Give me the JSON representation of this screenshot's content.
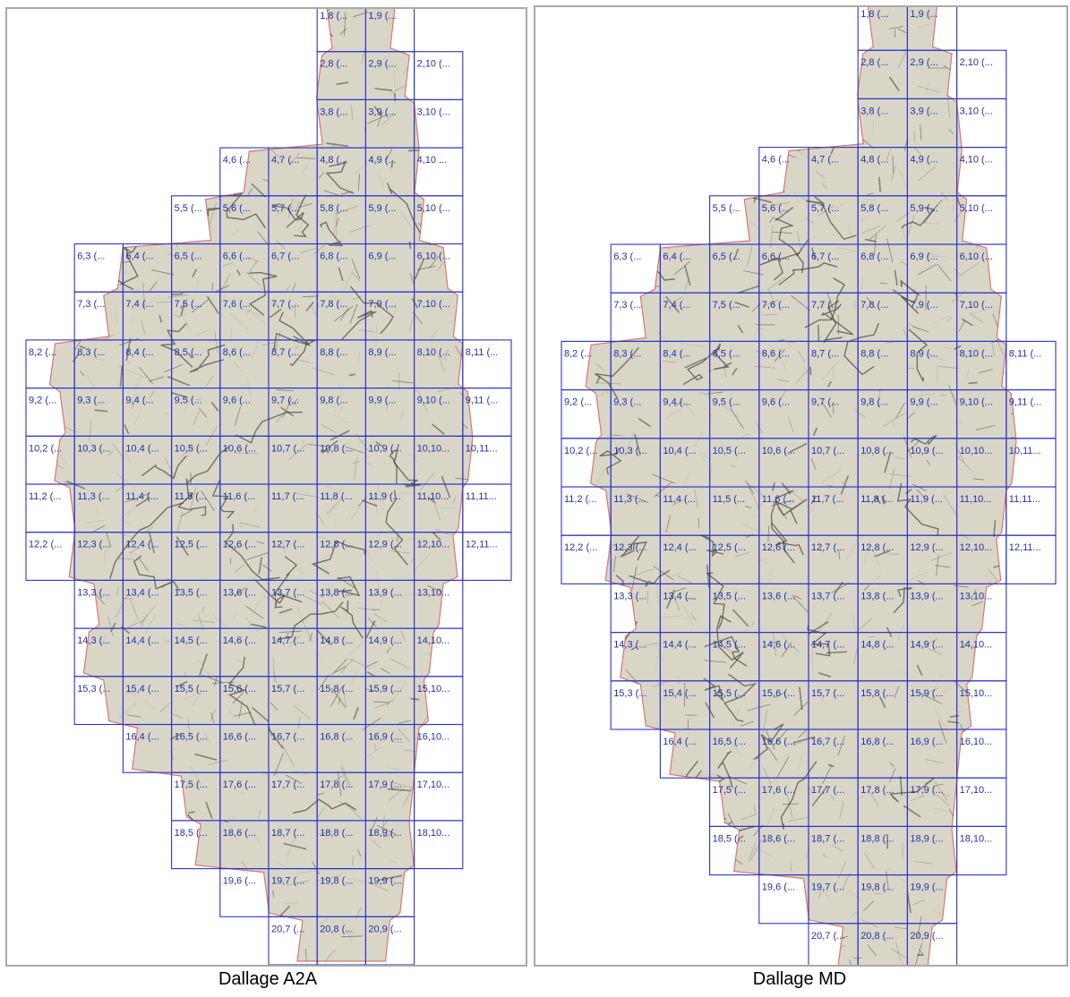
{
  "colors": {
    "grid": "#2a36c9",
    "label": "#2430a8",
    "map_base": "#d9d6c8",
    "map_dark": "#3d3a33",
    "map_edge": "#d8776f",
    "frame": "#a9a9a9"
  },
  "panels": [
    {
      "caption": "Dallage A2A",
      "rows": [
        {
          "row": 1,
          "cols": [
            8,
            9
          ],
          "labels": [
            "1,8 (...",
            "1,9 (..."
          ]
        },
        {
          "row": 2,
          "cols": [
            8,
            9,
            10
          ],
          "labels": [
            "2,8 (...",
            "2,9 (...",
            "2,10 (..."
          ]
        },
        {
          "row": 3,
          "cols": [
            8,
            9,
            10
          ],
          "labels": [
            "3,8 (...",
            "3,9 (...",
            "3,10 (..."
          ]
        },
        {
          "row": 4,
          "cols": [
            6,
            7,
            8,
            9,
            10
          ],
          "labels": [
            "4,6 (...",
            "4,7 (...",
            "4,8 (...",
            "4,9 (...",
            "4,10 ..."
          ]
        },
        {
          "row": 5,
          "cols": [
            5,
            6,
            7,
            8,
            9,
            10
          ],
          "labels": [
            "5,5 (...",
            "5,6 (...",
            "5,7 (...",
            "5,8 (...",
            "5,9 (...",
            "5,10 (..."
          ]
        },
        {
          "row": 6,
          "cols": [
            3,
            4,
            5,
            6,
            7,
            8,
            9,
            10
          ],
          "labels": [
            "6,3 (...",
            "6,4 (...",
            "6,5 (...",
            "6,6 (...",
            "6,7 (...",
            "6,8 (...",
            "6,9 (...",
            "6,10 (..."
          ]
        },
        {
          "row": 7,
          "cols": [
            3,
            4,
            5,
            6,
            7,
            8,
            9,
            10
          ],
          "labels": [
            "7,3 (...",
            "7,4 (...",
            "7,5 (...",
            "7,6 (...",
            "7,7 (...",
            "7,8 (...",
            "7,9 (...",
            "7,10 (..."
          ]
        },
        {
          "row": 8,
          "cols": [
            2,
            3,
            4,
            5,
            6,
            7,
            8,
            9,
            10,
            11
          ],
          "labels": [
            "8,2 (...",
            "8,3 (...",
            "8,4 (...",
            "8,5 (...",
            "8,6 (...",
            "8,7 (...",
            "8,8 (...",
            "8,9 (...",
            "8,10 (...",
            "8,11 (..."
          ]
        },
        {
          "row": 9,
          "cols": [
            2,
            3,
            4,
            5,
            6,
            7,
            8,
            9,
            10,
            11
          ],
          "labels": [
            "9,2 (...",
            "9,3 (...",
            "9,4 (...",
            "9,5 (...",
            "9,6 (...",
            "9,7 (...",
            "9,8 (...",
            "9,9 (...",
            "9,10 (...",
            "9,11 (..."
          ]
        },
        {
          "row": 10,
          "cols": [
            2,
            3,
            4,
            5,
            6,
            7,
            8,
            9,
            10,
            11
          ],
          "labels": [
            "10,2 (...",
            "10,3 (...",
            "10,4 (...",
            "10,5 (...",
            "10,6 (...",
            "10,7 (...",
            "10,8 (...",
            "10,9 (...",
            "10,10...",
            "10,11..."
          ]
        },
        {
          "row": 11,
          "cols": [
            2,
            3,
            4,
            5,
            6,
            7,
            8,
            9,
            10,
            11
          ],
          "labels": [
            "11,2 (...",
            "11,3 (...",
            "11,4 (...",
            "11,5 (...",
            "11,6 (...",
            "11,7 (...",
            "11,8 (...",
            "11,9 (...",
            "11,10...",
            "11,11..."
          ]
        },
        {
          "row": 12,
          "cols": [
            2,
            3,
            4,
            5,
            6,
            7,
            8,
            9,
            10,
            11
          ],
          "labels": [
            "12,2 (...",
            "12,3 (...",
            "12,4 (...",
            "12,5 (...",
            "12,6 (...",
            "12,7 (...",
            "12,8 (...",
            "12,9 (...",
            "12,10...",
            "12,11..."
          ]
        },
        {
          "row": 13,
          "cols": [
            3,
            4,
            5,
            6,
            7,
            8,
            9,
            10
          ],
          "labels": [
            "13,3 (...",
            "13,4 (...",
            "13,5 (...",
            "13,6 (...",
            "13,7 (...",
            "13,8 (...",
            "13,9 (...",
            "13,10..."
          ]
        },
        {
          "row": 14,
          "cols": [
            3,
            4,
            5,
            6,
            7,
            8,
            9,
            10
          ],
          "labels": [
            "14,3 (...",
            "14,4 (...",
            "14,5 (...",
            "14,6 (...",
            "14,7 (...",
            "14,8 (...",
            "14,9 (...",
            "14,10..."
          ]
        },
        {
          "row": 15,
          "cols": [
            3,
            4,
            5,
            6,
            7,
            8,
            9,
            10
          ],
          "labels": [
            "15,3 (...",
            "15,4 (...",
            "15,5 (...",
            "15,6 (...",
            "15,7 (...",
            "15,8 (...",
            "15,9 (...",
            "15,10..."
          ]
        },
        {
          "row": 16,
          "cols": [
            4,
            5,
            6,
            7,
            8,
            9,
            10
          ],
          "labels": [
            "16,4 (...",
            "16,5 (...",
            "16,6 (...",
            "16,7 (...",
            "16,8 (...",
            "16,9 (...",
            "16,10..."
          ]
        },
        {
          "row": 17,
          "cols": [
            5,
            6,
            7,
            8,
            9,
            10
          ],
          "labels": [
            "17,5 (...",
            "17,6 (...",
            "17,7 (...",
            "17,8 (...",
            "17,9 (...",
            "17,10..."
          ]
        },
        {
          "row": 18,
          "cols": [
            5,
            6,
            7,
            8,
            9,
            10
          ],
          "labels": [
            "18,5 (...",
            "18,6 (...",
            "18,7 (...",
            "18,8 (...",
            "18,9 (...",
            "18,10..."
          ]
        },
        {
          "row": 19,
          "cols": [
            6,
            7,
            8,
            9
          ],
          "labels": [
            "19,6 (...",
            "19,7 (...",
            "19,8 (...",
            "19,9 (..."
          ]
        },
        {
          "row": 20,
          "cols": [
            7,
            8,
            9
          ],
          "labels": [
            "20,7 (...",
            "20,8 (...",
            "20,9 (..."
          ]
        }
      ]
    },
    {
      "caption": "Dallage MD",
      "rows": [
        {
          "row": 1,
          "cols": [
            8,
            9
          ],
          "labels": [
            "1,8 (...",
            "1,9 (..."
          ]
        },
        {
          "row": 2,
          "cols": [
            8,
            9,
            10
          ],
          "labels": [
            "2,8 (...",
            "2,9 (...",
            "2,10 (..."
          ]
        },
        {
          "row": 3,
          "cols": [
            8,
            9,
            10
          ],
          "labels": [
            "3,8 (...",
            "3,9 (...",
            "3,10 (..."
          ]
        },
        {
          "row": 4,
          "cols": [
            6,
            7,
            8,
            9,
            10
          ],
          "labels": [
            "4,6 (...",
            "4,7 (...",
            "4,8 (...",
            "4,9 (...",
            "4,10 (..."
          ]
        },
        {
          "row": 5,
          "cols": [
            5,
            6,
            7,
            8,
            9,
            10
          ],
          "labels": [
            "5,5 (...",
            "5,6 (...",
            "5,7 (...",
            "5,8 (...",
            "5,9 (...",
            "5,10 (..."
          ]
        },
        {
          "row": 6,
          "cols": [
            3,
            4,
            5,
            6,
            7,
            8,
            9,
            10
          ],
          "labels": [
            "6,3 (...",
            "6,4 (...",
            "6,5 (...",
            "6,6 (...",
            "6,7 (...",
            "6,8 (...",
            "6,9 (...",
            "6,10 (..."
          ]
        },
        {
          "row": 7,
          "cols": [
            3,
            4,
            5,
            6,
            7,
            8,
            9,
            10
          ],
          "labels": [
            "7,3 (...",
            "7,4 (...",
            "7,5 (...",
            "7,6 (...",
            "7,7 (...",
            "7,8 (...",
            "7,9 (...",
            "7,10 (..."
          ]
        },
        {
          "row": 8,
          "cols": [
            2,
            3,
            4,
            5,
            6,
            7,
            8,
            9,
            10,
            11
          ],
          "labels": [
            "8,2 (...",
            "8,3 (...",
            "8,4 (...",
            "8,5 (...",
            "8,6 (...",
            "8,7 (...",
            "8,8 (...",
            "8,9 (...",
            "8,10 (...",
            "8,11 (..."
          ]
        },
        {
          "row": 9,
          "cols": [
            2,
            3,
            4,
            5,
            6,
            7,
            8,
            9,
            10,
            11
          ],
          "labels": [
            "9,2 (...",
            "9,3 (...",
            "9,4 (...",
            "9,5 (...",
            "9,6 (...",
            "9,7 (...",
            "9,8 (...",
            "9,9 (...",
            "9,10 (...",
            "9,11 (..."
          ]
        },
        {
          "row": 10,
          "cols": [
            2,
            3,
            4,
            5,
            6,
            7,
            8,
            9,
            10,
            11
          ],
          "labels": [
            "10,2 (...",
            "10,3 (...",
            "10,4 (...",
            "10,5 (...",
            "10,6 (...",
            "10,7 (...",
            "10,8 (...",
            "10,9 (...",
            "10,10...",
            "10,11..."
          ]
        },
        {
          "row": 11,
          "cols": [
            2,
            3,
            4,
            5,
            6,
            7,
            8,
            9,
            10,
            11
          ],
          "labels": [
            "11,2 (...",
            "11,3 (...",
            "11,4 (...",
            "11,5 (...",
            "11,6 (...",
            "11,7 (...",
            "11,8 (...",
            "11,9 (...",
            "11,10...",
            "11,11..."
          ]
        },
        {
          "row": 12,
          "cols": [
            2,
            3,
            4,
            5,
            6,
            7,
            8,
            9,
            10,
            11
          ],
          "labels": [
            "12,2 (...",
            "12,3 (...",
            "12,4 (...",
            "12,5 (...",
            "12,6 (...",
            "12,7 (...",
            "12,8 (...",
            "12,9 (...",
            "12,10...",
            "12,11..."
          ]
        },
        {
          "row": 13,
          "cols": [
            3,
            4,
            5,
            6,
            7,
            8,
            9,
            10
          ],
          "labels": [
            "13,3 (...",
            "13,4 (...",
            "13,5 (...",
            "13,6 (...",
            "13,7 (...",
            "13,8 (...",
            "13,9 (...",
            "13,10..."
          ]
        },
        {
          "row": 14,
          "cols": [
            3,
            4,
            5,
            6,
            7,
            8,
            9,
            10
          ],
          "labels": [
            "14,3 (...",
            "14,4 (...",
            "14,5 (...",
            "14,6 (...",
            "14,7 (...",
            "14,8 (...",
            "14,9 (...",
            "14,10..."
          ]
        },
        {
          "row": 15,
          "cols": [
            3,
            4,
            5,
            6,
            7,
            8,
            9,
            10
          ],
          "labels": [
            "15,3 (...",
            "15,4 (...",
            "15,5 (...",
            "15,6 (...",
            "15,7 (...",
            "15,8 (...",
            "15,9 (...",
            "15,10..."
          ]
        },
        {
          "row": 16,
          "cols": [
            4,
            5,
            6,
            7,
            8,
            9,
            10
          ],
          "labels": [
            "16,4 (...",
            "16,5 (...",
            "16,6 (...",
            "16,7 (...",
            "16,8 (...",
            "16,9 (...",
            "16,10..."
          ]
        },
        {
          "row": 17,
          "cols": [
            5,
            6,
            7,
            8,
            9,
            10
          ],
          "labels": [
            "17,5 (...",
            "17,6 (...",
            "17,7 (...",
            "17,8 (...",
            "17,9 (...",
            "17,10..."
          ]
        },
        {
          "row": 18,
          "cols": [
            5,
            6,
            7,
            8,
            9,
            10
          ],
          "labels": [
            "18,5 (...",
            "18,6 (...",
            "18,7 (...",
            "18,8 (...",
            "18,9 (...",
            "18,10..."
          ]
        },
        {
          "row": 19,
          "cols": [
            6,
            7,
            8,
            9
          ],
          "labels": [
            "19,6 (...",
            "19,7 (...",
            "19,8 (...",
            "19,9 (..."
          ]
        },
        {
          "row": 20,
          "cols": [
            7,
            8,
            9
          ],
          "labels": [
            "20,7 (...",
            "20,8 (...",
            "20,9 (..."
          ]
        }
      ]
    }
  ]
}
